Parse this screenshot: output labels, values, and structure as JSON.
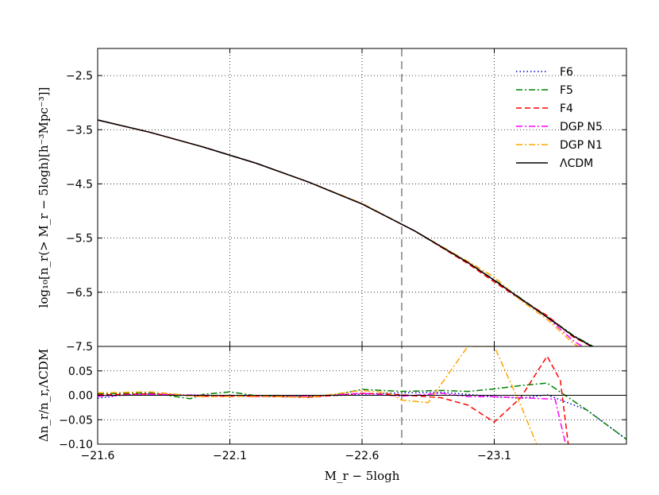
{
  "chart_data": [
    {
      "type": "line",
      "panel": "main",
      "ylabel": "log₁₀[n_r(> M_r − 5logh)[h⁻³Mpc⁻³]]",
      "xlim": [
        -21.6,
        -23.6
      ],
      "ylim": [
        -7.5,
        -2.0
      ],
      "x_ticks": [
        -21.6,
        -22.1,
        -22.6,
        -23.1
      ],
      "x_tick_labels": [
        "−21.6",
        "−22.1",
        "−22.6",
        "−23.1"
      ],
      "y_ticks": [
        -2.5,
        -3.5,
        -4.5,
        -5.5,
        -6.5,
        -7.5
      ],
      "y_tick_labels": [
        "−2.5",
        "−3.5",
        "−4.5",
        "−5.5",
        "−6.5",
        "−7.5"
      ],
      "grid": true,
      "legend": "top-right",
      "vline_x": -22.75,
      "series": [
        {
          "name": "F6",
          "color": "#0000cc",
          "style": "dotted",
          "x": [
            -21.6,
            -21.8,
            -22.0,
            -22.2,
            -22.4,
            -22.6,
            -22.8,
            -23.0,
            -23.1,
            -23.2,
            -23.3,
            -23.4,
            -23.5
          ],
          "y": [
            -3.32,
            -3.55,
            -3.82,
            -4.12,
            -4.47,
            -4.87,
            -5.37,
            -5.95,
            -6.28,
            -6.62,
            -6.96,
            -7.31,
            -7.58
          ]
        },
        {
          "name": "F5",
          "color": "#008000",
          "style": "dashdot",
          "x": [
            -21.6,
            -21.8,
            -22.0,
            -22.2,
            -22.4,
            -22.6,
            -22.8,
            -23.0,
            -23.1,
            -23.2,
            -23.3,
            -23.4,
            -23.5
          ],
          "y": [
            -3.32,
            -3.55,
            -3.82,
            -4.12,
            -4.47,
            -4.87,
            -5.37,
            -5.95,
            -6.27,
            -6.61,
            -6.95,
            -7.3,
            -7.57
          ]
        },
        {
          "name": "F4",
          "color": "#ff0000",
          "style": "dashed",
          "x": [
            -21.6,
            -21.8,
            -22.0,
            -22.2,
            -22.4,
            -22.6,
            -22.8,
            -23.0,
            -23.1,
            -23.2,
            -23.3,
            -23.4,
            -23.5
          ],
          "y": [
            -3.32,
            -3.55,
            -3.82,
            -4.12,
            -4.47,
            -4.87,
            -5.37,
            -5.97,
            -6.31,
            -6.63,
            -6.93,
            -7.33,
            -7.58
          ]
        },
        {
          "name": "DGP N5",
          "color": "#ff00ff",
          "style": "dashdot",
          "x": [
            -21.6,
            -21.8,
            -22.0,
            -22.2,
            -22.4,
            -22.6,
            -22.8,
            -23.0,
            -23.1,
            -23.2,
            -23.3,
            -23.4,
            -23.5
          ],
          "y": [
            -3.32,
            -3.55,
            -3.82,
            -4.12,
            -4.47,
            -4.87,
            -5.37,
            -5.95,
            -6.28,
            -6.62,
            -6.96,
            -7.4,
            -7.7
          ]
        },
        {
          "name": "DGP N1",
          "color": "#ffa500",
          "style": "dashdot",
          "x": [
            -21.6,
            -21.8,
            -22.0,
            -22.2,
            -22.4,
            -22.6,
            -22.8,
            -23.0,
            -23.1,
            -23.2,
            -23.3,
            -23.4,
            -23.5
          ],
          "y": [
            -3.32,
            -3.55,
            -3.82,
            -4.12,
            -4.47,
            -4.86,
            -5.37,
            -5.93,
            -6.22,
            -6.65,
            -7.0,
            -7.45,
            -7.7
          ]
        },
        {
          "name": "ΛCDM",
          "color": "#000000",
          "style": "solid",
          "x": [
            -21.6,
            -21.8,
            -22.0,
            -22.2,
            -22.4,
            -22.6,
            -22.8,
            -23.0,
            -23.1,
            -23.2,
            -23.3,
            -23.4,
            -23.5
          ],
          "y": [
            -3.32,
            -3.55,
            -3.82,
            -4.12,
            -4.47,
            -4.87,
            -5.37,
            -5.95,
            -6.28,
            -6.62,
            -6.96,
            -7.31,
            -7.58
          ]
        }
      ]
    },
    {
      "type": "line",
      "panel": "residual",
      "xlabel": "M_r − 5logh",
      "ylabel": "Δn_r/n_r,ΛCDM",
      "xlim": [
        -21.6,
        -23.6
      ],
      "ylim": [
        -0.1,
        0.1
      ],
      "x_ticks": [
        -21.6,
        -22.1,
        -22.6,
        -23.1
      ],
      "x_tick_labels": [
        "−21.6",
        "−22.1",
        "−22.6",
        "−23.1"
      ],
      "y_ticks": [
        0.05,
        0.0,
        -0.05,
        -0.1
      ],
      "y_tick_labels": [
        "0.05",
        "0.00",
        "−0.05",
        "−0.10"
      ],
      "grid": true,
      "vline_x": -22.75,
      "hline_y": 0.0,
      "series": [
        {
          "name": "F6",
          "color": "#0000cc",
          "style": "dotted",
          "x": [
            -21.6,
            -21.7,
            -21.8,
            -22.0,
            -22.2,
            -22.4,
            -22.6,
            -22.75,
            -22.9,
            -23.0,
            -23.1,
            -23.2,
            -23.3,
            -23.45,
            -23.6
          ],
          "y": [
            -0.006,
            0.001,
            0.003,
            0.0,
            -0.002,
            -0.003,
            0.002,
            0.005,
            0.006,
            0.002,
            -0.003,
            -0.006,
            0.001,
            -0.03,
            -0.09
          ]
        },
        {
          "name": "F5",
          "color": "#008000",
          "style": "dashdot",
          "x": [
            -21.6,
            -21.8,
            -21.95,
            -22.0,
            -22.1,
            -22.2,
            -22.4,
            -22.5,
            -22.6,
            -22.75,
            -22.9,
            -23.0,
            -23.1,
            -23.2,
            -23.3,
            -23.45,
            -23.6
          ],
          "y": [
            0.003,
            0.005,
            -0.007,
            0.002,
            0.007,
            -0.001,
            -0.002,
            0.001,
            0.012,
            0.008,
            0.01,
            0.008,
            0.013,
            0.02,
            0.025,
            -0.03,
            -0.09
          ]
        },
        {
          "name": "F4",
          "color": "#ff0000",
          "style": "dashed",
          "x": [
            -21.6,
            -21.8,
            -22.0,
            -22.2,
            -22.4,
            -22.6,
            -22.75,
            -22.9,
            -23.0,
            -23.1,
            -23.2,
            -23.3,
            -23.35,
            -23.38
          ],
          "y": [
            0.001,
            0.003,
            -0.002,
            -0.002,
            -0.004,
            0.004,
            0.001,
            -0.005,
            -0.02,
            -0.055,
            -0.005,
            0.08,
            0.03,
            -0.1
          ]
        },
        {
          "name": "DGP N5",
          "color": "#ff00ff",
          "style": "dashdot",
          "x": [
            -21.6,
            -21.8,
            -22.0,
            -22.2,
            -22.4,
            -22.6,
            -22.75,
            -22.9,
            -23.0,
            -23.1,
            -23.2,
            -23.33,
            -23.37
          ],
          "y": [
            -0.002,
            0.002,
            0.0,
            -0.003,
            -0.002,
            0.004,
            -0.002,
            0.004,
            -0.003,
            -0.003,
            -0.005,
            -0.008,
            -0.1
          ]
        },
        {
          "name": "DGP N1",
          "color": "#ffa500",
          "style": "dashdot",
          "x": [
            -21.6,
            -21.8,
            -22.0,
            -22.2,
            -22.4,
            -22.6,
            -22.7,
            -22.75,
            -22.85,
            -23.0,
            -23.1,
            -23.2,
            -23.26
          ],
          "y": [
            0.005,
            0.007,
            -0.003,
            -0.002,
            -0.004,
            0.01,
            0.005,
            -0.01,
            -0.015,
            0.1,
            0.1,
            -0.02,
            -0.1
          ]
        }
      ]
    }
  ]
}
